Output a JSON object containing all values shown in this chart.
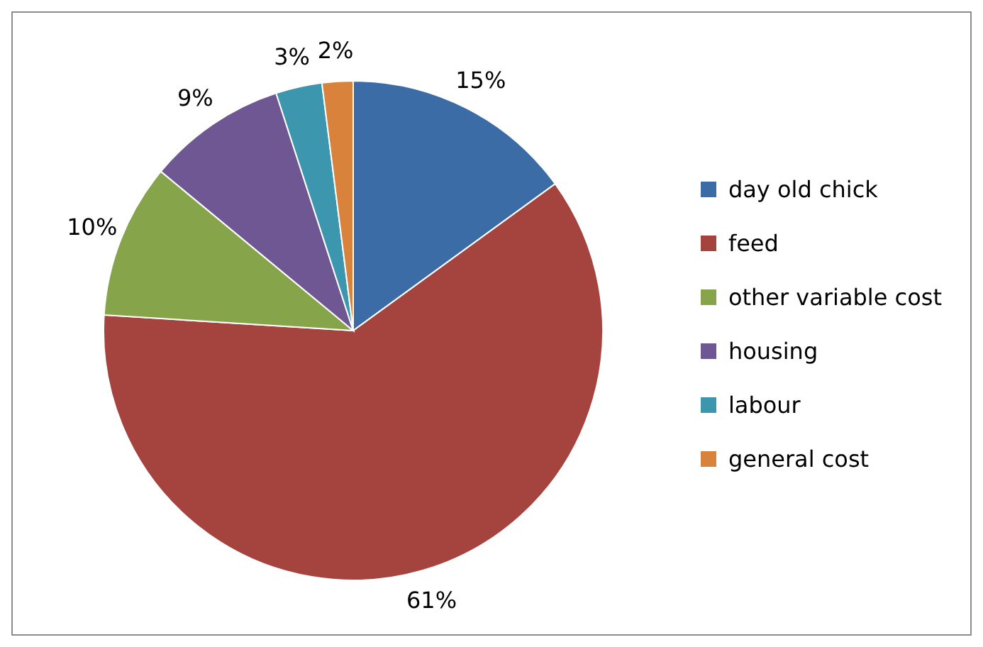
{
  "chart_data": {
    "type": "pie",
    "categories": [
      "day old chick",
      "feed",
      "other variable cost",
      "housing",
      "labour",
      "general cost"
    ],
    "values": [
      15,
      61,
      10,
      9,
      3,
      2
    ],
    "colors": [
      "#3c6ca5",
      "#a5443f",
      "#86a44a",
      "#6e5793",
      "#3c97ae",
      "#d9823b"
    ],
    "value_labels": [
      "15%",
      "61%",
      "10%",
      "9%",
      "3%",
      "2%"
    ],
    "legend": "right"
  }
}
